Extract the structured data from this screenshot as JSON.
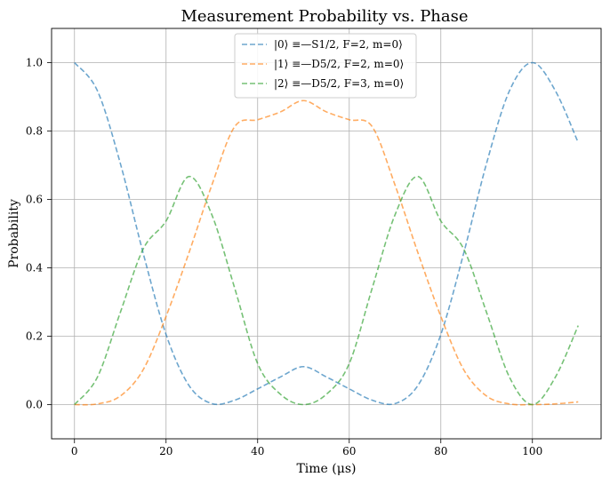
{
  "chart_data": {
    "type": "line",
    "title": "Measurement Probability vs. Phase",
    "xlabel": "Time (μs)",
    "ylabel": "Probability",
    "xlim": [
      -5,
      115
    ],
    "ylim": [
      -0.1,
      1.1
    ],
    "x_ticks": [
      0,
      20,
      40,
      60,
      80,
      100
    ],
    "y_ticks": [
      0.0,
      0.2,
      0.4,
      0.6,
      0.8,
      1.0
    ],
    "x_tick_labels": [
      "0",
      "20",
      "40",
      "60",
      "80",
      "100"
    ],
    "y_tick_labels": [
      "0.0",
      "0.2",
      "0.4",
      "0.6",
      "0.8",
      "1.0"
    ],
    "grid": true,
    "legend_position": "top-center",
    "x": [
      0,
      5,
      10,
      15,
      20,
      25,
      30,
      35,
      40,
      45,
      50,
      55,
      60,
      65,
      70,
      75,
      80,
      85,
      90,
      95,
      100,
      105,
      110
    ],
    "series": [
      {
        "name": "|0⟩ ≡—S1/2, F=2, m=0⟩",
        "color": "#1f77b4",
        "values": [
          1.0,
          0.918,
          0.706,
          0.443,
          0.205,
          0.056,
          0.003,
          0.013,
          0.046,
          0.081,
          0.111,
          0.081,
          0.046,
          0.013,
          0.003,
          0.056,
          0.205,
          0.443,
          0.706,
          0.918,
          1.0,
          0.918,
          0.766
        ]
      },
      {
        "name": "|1⟩ ≡—D5/2, F=2, m=0⟩",
        "color": "#ff7f0e",
        "values": [
          0.0,
          0.002,
          0.025,
          0.102,
          0.258,
          0.444,
          0.642,
          0.813,
          0.833,
          0.856,
          0.889,
          0.856,
          0.833,
          0.813,
          0.642,
          0.444,
          0.258,
          0.102,
          0.025,
          0.002,
          0.0,
          0.002,
          0.008
        ]
      },
      {
        "name": "|2⟩ ≡—D5/2, F=3, m=0⟩",
        "color": "#2ca02c",
        "values": [
          0.0,
          0.08,
          0.269,
          0.455,
          0.537,
          0.667,
          0.555,
          0.34,
          0.12,
          0.03,
          0.0,
          0.03,
          0.12,
          0.34,
          0.555,
          0.667,
          0.537,
          0.455,
          0.269,
          0.08,
          0.0,
          0.08,
          0.231
        ]
      }
    ]
  }
}
